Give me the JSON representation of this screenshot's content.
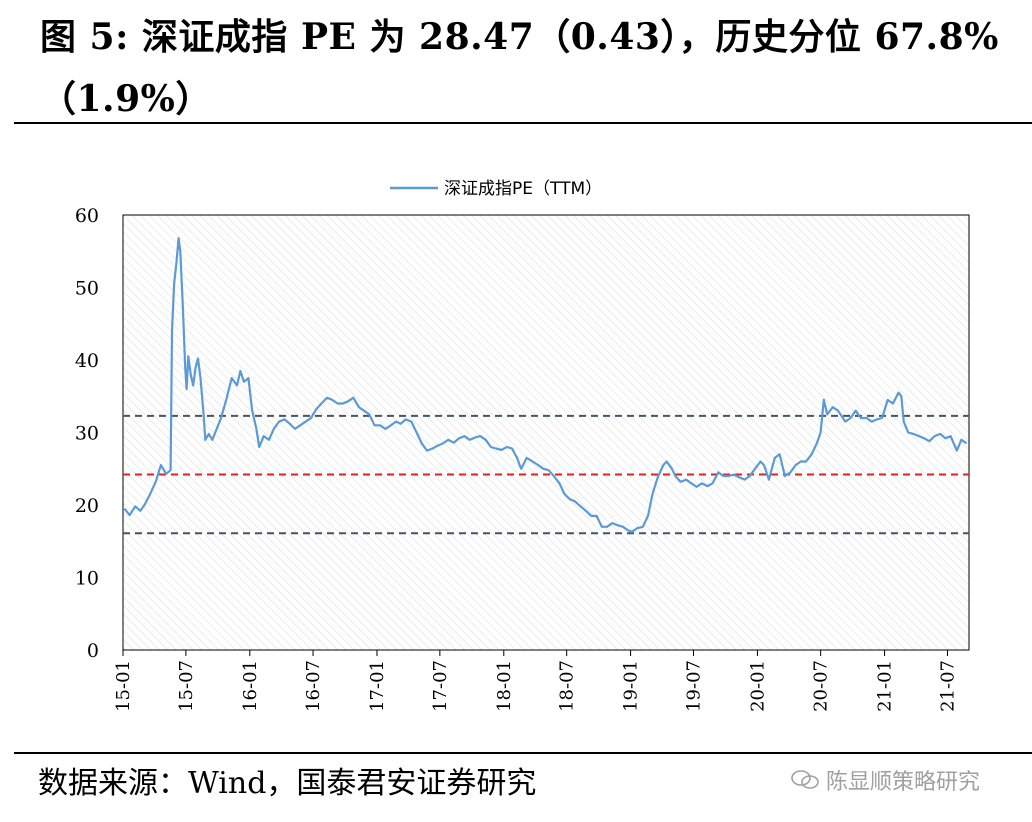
{
  "header": {
    "title_line1": "图 5: 深证成指 PE 为 28.47（0.43），历史分位 67.8%",
    "title_line2": "（1.9%）"
  },
  "footer": {
    "source": "数据来源：Wind，国泰君安证券研究",
    "watermark": "陈显顺策略研究"
  },
  "colors": {
    "series": "#5B9BD5",
    "median": "#E02020",
    "bands": "#44546A",
    "hatch": "#d9d9d9"
  },
  "chart_data": {
    "type": "line",
    "title": "",
    "legend_position": "top-center",
    "xlabel": "",
    "ylabel": "",
    "ylim": [
      0,
      60
    ],
    "yticks": [
      0,
      10,
      20,
      30,
      40,
      50,
      60
    ],
    "xlim": [
      "2015-01-01",
      "2021-09-01"
    ],
    "xticks": [
      "15-01",
      "15-07",
      "16-01",
      "16-07",
      "17-01",
      "17-07",
      "18-01",
      "18-07",
      "19-01",
      "19-07",
      "20-01",
      "20-07",
      "21-01",
      "21-07"
    ],
    "reference_lines": [
      {
        "label": "",
        "value": 32.3,
        "style": "dashed",
        "color": "#44546A"
      },
      {
        "label": "",
        "value": 24.2,
        "style": "dashed",
        "color": "#E02020"
      },
      {
        "label": "",
        "value": 16.1,
        "style": "dashed",
        "color": "#44546A"
      }
    ],
    "series": [
      {
        "name": "深证成指PE（TTM）",
        "points": [
          [
            "2015-01-05",
            19.5
          ],
          [
            "2015-01-20",
            18.6
          ],
          [
            "2015-02-05",
            19.8
          ],
          [
            "2015-02-20",
            19.2
          ],
          [
            "2015-03-05",
            20.1
          ],
          [
            "2015-03-20",
            21.5
          ],
          [
            "2015-04-05",
            23.2
          ],
          [
            "2015-04-20",
            25.5
          ],
          [
            "2015-05-05",
            24.3
          ],
          [
            "2015-05-18",
            24.8
          ],
          [
            "2015-05-22",
            44.0
          ],
          [
            "2015-05-28",
            50.5
          ],
          [
            "2015-06-04",
            53.5
          ],
          [
            "2015-06-10",
            56.8
          ],
          [
            "2015-06-15",
            55.0
          ],
          [
            "2015-06-22",
            47.5
          ],
          [
            "2015-06-29",
            39.0
          ],
          [
            "2015-07-03",
            36.0
          ],
          [
            "2015-07-08",
            40.5
          ],
          [
            "2015-07-15",
            38.0
          ],
          [
            "2015-07-22",
            36.5
          ],
          [
            "2015-07-29",
            39.0
          ],
          [
            "2015-08-05",
            40.2
          ],
          [
            "2015-08-12",
            37.5
          ],
          [
            "2015-08-20",
            33.0
          ],
          [
            "2015-08-26",
            29.0
          ],
          [
            "2015-09-05",
            29.8
          ],
          [
            "2015-09-15",
            29.0
          ],
          [
            "2015-09-25",
            30.2
          ],
          [
            "2015-10-10",
            32.0
          ],
          [
            "2015-10-25",
            34.5
          ],
          [
            "2015-11-10",
            37.5
          ],
          [
            "2015-11-25",
            36.5
          ],
          [
            "2015-12-05",
            38.5
          ],
          [
            "2015-12-15",
            37.0
          ],
          [
            "2015-12-28",
            37.5
          ],
          [
            "2016-01-08",
            33.0
          ],
          [
            "2016-01-20",
            30.5
          ],
          [
            "2016-01-28",
            28.0
          ],
          [
            "2016-02-10",
            29.5
          ],
          [
            "2016-02-25",
            29.0
          ],
          [
            "2016-03-10",
            30.5
          ],
          [
            "2016-03-25",
            31.5
          ],
          [
            "2016-04-10",
            31.8
          ],
          [
            "2016-04-25",
            31.2
          ],
          [
            "2016-05-10",
            30.5
          ],
          [
            "2016-05-25",
            31.0
          ],
          [
            "2016-06-10",
            31.5
          ],
          [
            "2016-06-25",
            32.0
          ],
          [
            "2016-07-10",
            33.2
          ],
          [
            "2016-07-25",
            34.0
          ],
          [
            "2016-08-10",
            34.8
          ],
          [
            "2016-08-25",
            34.5
          ],
          [
            "2016-09-10",
            34.0
          ],
          [
            "2016-09-25",
            34.0
          ],
          [
            "2016-10-10",
            34.3
          ],
          [
            "2016-10-25",
            34.8
          ],
          [
            "2016-11-10",
            33.5
          ],
          [
            "2016-11-25",
            33.0
          ],
          [
            "2016-12-10",
            32.5
          ],
          [
            "2016-12-25",
            31.0
          ],
          [
            "2017-01-10",
            31.0
          ],
          [
            "2017-01-25",
            30.5
          ],
          [
            "2017-02-10",
            31.0
          ],
          [
            "2017-02-25",
            31.5
          ],
          [
            "2017-03-10",
            31.2
          ],
          [
            "2017-03-25",
            31.8
          ],
          [
            "2017-04-10",
            31.5
          ],
          [
            "2017-04-25",
            30.0
          ],
          [
            "2017-05-10",
            28.5
          ],
          [
            "2017-05-25",
            27.5
          ],
          [
            "2017-06-10",
            27.8
          ],
          [
            "2017-06-25",
            28.2
          ],
          [
            "2017-07-10",
            28.5
          ],
          [
            "2017-07-25",
            29.0
          ],
          [
            "2017-08-10",
            28.6
          ],
          [
            "2017-08-25",
            29.2
          ],
          [
            "2017-09-10",
            29.5
          ],
          [
            "2017-09-25",
            29.0
          ],
          [
            "2017-10-10",
            29.3
          ],
          [
            "2017-10-25",
            29.5
          ],
          [
            "2017-11-10",
            29.0
          ],
          [
            "2017-11-25",
            28.0
          ],
          [
            "2017-12-10",
            27.8
          ],
          [
            "2017-12-25",
            27.6
          ],
          [
            "2018-01-10",
            28.0
          ],
          [
            "2018-01-25",
            27.8
          ],
          [
            "2018-02-08",
            26.5
          ],
          [
            "2018-02-20",
            25.0
          ],
          [
            "2018-03-08",
            26.5
          ],
          [
            "2018-03-25",
            26.0
          ],
          [
            "2018-04-10",
            25.5
          ],
          [
            "2018-04-25",
            25.0
          ],
          [
            "2018-05-10",
            24.8
          ],
          [
            "2018-05-25",
            24.0
          ],
          [
            "2018-06-10",
            23.0
          ],
          [
            "2018-06-25",
            21.5
          ],
          [
            "2018-07-10",
            20.8
          ],
          [
            "2018-07-25",
            20.5
          ],
          [
            "2018-08-10",
            19.8
          ],
          [
            "2018-08-25",
            19.2
          ],
          [
            "2018-09-10",
            18.5
          ],
          [
            "2018-09-25",
            18.5
          ],
          [
            "2018-10-10",
            17.0
          ],
          [
            "2018-10-25",
            17.0
          ],
          [
            "2018-11-10",
            17.5
          ],
          [
            "2018-11-25",
            17.2
          ],
          [
            "2018-12-10",
            17.0
          ],
          [
            "2018-12-25",
            16.5
          ],
          [
            "2019-01-05",
            16.3
          ],
          [
            "2019-01-20",
            16.8
          ],
          [
            "2019-02-05",
            17.0
          ],
          [
            "2019-02-20",
            18.5
          ],
          [
            "2019-03-05",
            21.5
          ],
          [
            "2019-03-20",
            23.8
          ],
          [
            "2019-04-05",
            25.5
          ],
          [
            "2019-04-15",
            26.0
          ],
          [
            "2019-04-30",
            25.0
          ],
          [
            "2019-05-10",
            24.0
          ],
          [
            "2019-05-25",
            23.2
          ],
          [
            "2019-06-10",
            23.5
          ],
          [
            "2019-06-25",
            23.0
          ],
          [
            "2019-07-10",
            22.5
          ],
          [
            "2019-07-25",
            23.0
          ],
          [
            "2019-08-10",
            22.6
          ],
          [
            "2019-08-25",
            23.0
          ],
          [
            "2019-09-10",
            24.5
          ],
          [
            "2019-09-25",
            24.0
          ],
          [
            "2019-10-10",
            24.0
          ],
          [
            "2019-10-25",
            24.2
          ],
          [
            "2019-11-10",
            23.8
          ],
          [
            "2019-11-25",
            23.5
          ],
          [
            "2019-12-10",
            24.0
          ],
          [
            "2019-12-25",
            25.0
          ],
          [
            "2020-01-10",
            26.0
          ],
          [
            "2020-01-20",
            25.5
          ],
          [
            "2020-02-03",
            23.5
          ],
          [
            "2020-02-20",
            26.5
          ],
          [
            "2020-03-05",
            27.0
          ],
          [
            "2020-03-20",
            24.0
          ],
          [
            "2020-04-05",
            24.5
          ],
          [
            "2020-04-20",
            25.5
          ],
          [
            "2020-05-05",
            26.0
          ],
          [
            "2020-05-20",
            26.0
          ],
          [
            "2020-06-05",
            27.0
          ],
          [
            "2020-06-20",
            28.5
          ],
          [
            "2020-07-01",
            30.0
          ],
          [
            "2020-07-10",
            34.5
          ],
          [
            "2020-07-20",
            32.5
          ],
          [
            "2020-08-05",
            33.5
          ],
          [
            "2020-08-20",
            33.0
          ],
          [
            "2020-09-10",
            31.5
          ],
          [
            "2020-09-25",
            32.0
          ],
          [
            "2020-10-10",
            33.0
          ],
          [
            "2020-10-25",
            32.0
          ],
          [
            "2020-11-10",
            32.0
          ],
          [
            "2020-11-25",
            31.5
          ],
          [
            "2020-12-10",
            31.8
          ],
          [
            "2020-12-25",
            32.0
          ],
          [
            "2021-01-10",
            34.5
          ],
          [
            "2021-01-25",
            34.0
          ],
          [
            "2021-02-10",
            35.5
          ],
          [
            "2021-02-18",
            35.0
          ],
          [
            "2021-02-25",
            31.5
          ],
          [
            "2021-03-10",
            30.0
          ],
          [
            "2021-03-25",
            29.8
          ],
          [
            "2021-04-10",
            29.5
          ],
          [
            "2021-04-25",
            29.2
          ],
          [
            "2021-05-10",
            28.8
          ],
          [
            "2021-05-25",
            29.5
          ],
          [
            "2021-06-10",
            29.8
          ],
          [
            "2021-06-25",
            29.2
          ],
          [
            "2021-07-10",
            29.5
          ],
          [
            "2021-07-28",
            27.5
          ],
          [
            "2021-08-10",
            29.0
          ],
          [
            "2021-08-25",
            28.5
          ]
        ]
      }
    ]
  }
}
